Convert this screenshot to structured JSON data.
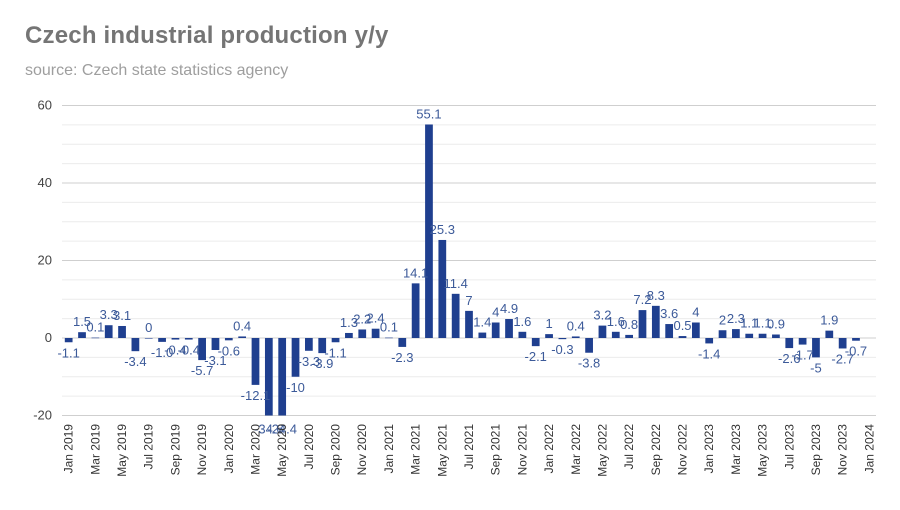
{
  "chart_data": {
    "type": "bar",
    "title": "Czech industrial production y/y",
    "subtitle": "source: Czech state statistics agency",
    "xlabel": "",
    "ylabel": "",
    "ylim": [
      -20,
      60
    ],
    "yticks": [
      -20,
      0,
      20,
      40,
      60
    ],
    "grid": true,
    "legend": "none",
    "bar_color": "#1f3f8f",
    "label_color": "#3c5a99",
    "categories": [
      "Jan 2019",
      "Feb 2019",
      "Mar 2019",
      "Apr 2019",
      "May 2019",
      "Jun 2019",
      "Jul 2019",
      "Aug 2019",
      "Sep 2019",
      "Oct 2019",
      "Nov 2019",
      "Dec 2019",
      "Jan 2020",
      "Feb 2020",
      "Mar 2020",
      "Apr 2020",
      "May 2020",
      "Jun 2020",
      "Jul 2020",
      "Aug 2020",
      "Sep 2020",
      "Oct 2020",
      "Nov 2020",
      "Dec 2020",
      "Jan 2021",
      "Feb 2021",
      "Mar 2021",
      "Apr 2021",
      "May 2021",
      "Jun 2021",
      "Jul 2021",
      "Aug 2021",
      "Sep 2021",
      "Oct 2021",
      "Nov 2021",
      "Dec 2021",
      "Jan 2022",
      "Feb 2022",
      "Mar 2022",
      "Apr 2022",
      "May 2022",
      "Jun 2022",
      "Jul 2022",
      "Aug 2022",
      "Sep 2022",
      "Oct 2022",
      "Nov 2022",
      "Dec 2022",
      "Jan 2023",
      "Feb 2023",
      "Mar 2023",
      "Apr 2023",
      "May 2023",
      "Jun 2023",
      "Jul 2023",
      "Aug 2023",
      "Sep 2023",
      "Oct 2023",
      "Nov 2023",
      "Dec 2023",
      "Jan 2024"
    ],
    "x_tick_labels": [
      "Jan 2019",
      "Mar 2019",
      "May 2019",
      "Jul 2019",
      "Sep 2019",
      "Nov 2019",
      "Jan 2020",
      "Mar 2020",
      "May 2020",
      "Jul 2020",
      "Sep 2020",
      "Nov 2020",
      "Jan 2021",
      "Mar 2021",
      "May 2021",
      "Jul 2021",
      "Sep 2021",
      "Nov 2021",
      "Jan 2022",
      "Mar 2022",
      "May 2022",
      "Jul 2022",
      "Sep 2022",
      "Nov 2022",
      "Jan 2023",
      "Mar 2023",
      "May 2023",
      "Jul 2023",
      "Sep 2023",
      "Nov 2023",
      "Jan 2024"
    ],
    "values": [
      -1.1,
      1.5,
      0.1,
      3.3,
      3.1,
      -3.4,
      0,
      -1.0,
      -0.4,
      -0.4,
      -5.7,
      -3.1,
      -0.6,
      0.4,
      -12.1,
      -34.6,
      -24.4,
      -10,
      -3.3,
      -3.9,
      -1.1,
      1.3,
      2.2,
      2.4,
      0.1,
      -2.3,
      14.1,
      55.1,
      25.3,
      11.4,
      7,
      1.4,
      4.0,
      4.9,
      1.6,
      -2.1,
      1,
      -0.3,
      0.4,
      -3.8,
      3.2,
      1.6,
      0.8,
      7.2,
      8.3,
      3.6,
      0.5,
      4,
      -1.4,
      2.0,
      2.3,
      1.1,
      1.1,
      0.9,
      -2.6,
      -1.7,
      -5,
      1.9,
      -2.7,
      -0.7,
      null
    ],
    "data_labels": [
      "-1.1",
      "1.5",
      "0.1",
      "3.3",
      "3.1",
      "-3.4",
      "0",
      "-1.0",
      "-0.4",
      "-0.4",
      "-5.7",
      "-3.1",
      "-0.6",
      "0.4",
      "-12.1",
      "-34.6",
      "-24.4",
      "-10",
      "-3.3",
      "-3.9",
      "-1.1",
      "1.3",
      "2.2",
      "2.4",
      "0.1",
      "-2.3",
      "14.1",
      "55.1",
      "25.3",
      "11.4",
      "7",
      "1.4",
      "4",
      "4.9",
      "1.6",
      "-2.1",
      "1",
      "-0.3",
      "0.4",
      "-3.8",
      "3.2",
      "1.6",
      "0.8",
      "7.2",
      "8.3",
      "3.6",
      "0.5",
      "4",
      "-1.4",
      "2",
      "2.3",
      "1.1",
      "1.1",
      "0.9",
      "-2.6",
      "-1.7",
      "-5",
      "1.9",
      "-2.7",
      "-0.7",
      ""
    ]
  }
}
